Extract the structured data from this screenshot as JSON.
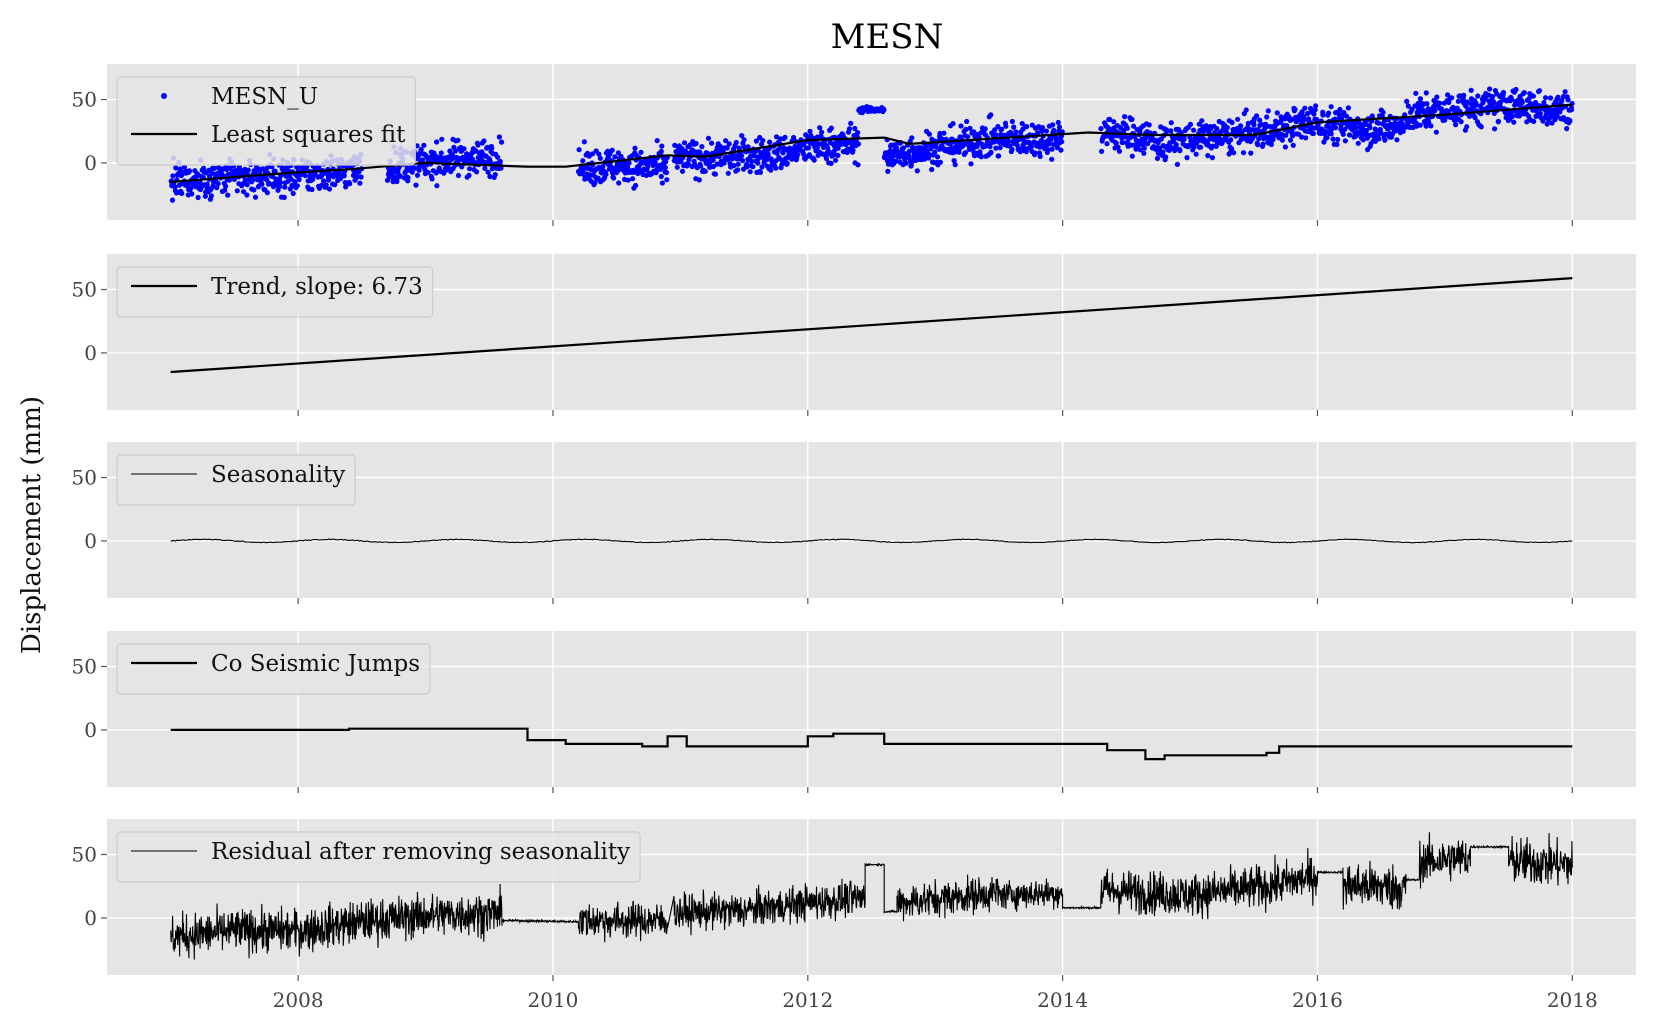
{
  "chart_data": {
    "type": "line",
    "title": "MESN",
    "ylabel": "Displacement (mm)",
    "xlabel": "",
    "xlim": [
      2006.5,
      2018.5
    ],
    "ylim": [
      -45,
      78
    ],
    "x_ticks": [
      2008,
      2010,
      2012,
      2014,
      2016,
      2018
    ],
    "x_tick_labels": [
      "2008",
      "2010",
      "2012",
      "2014",
      "2016",
      "2018"
    ],
    "y_ticks": [
      0,
      50
    ],
    "y_tick_labels": [
      "0",
      "50"
    ],
    "grid": true,
    "background": "#e5e5e5",
    "panels": [
      {
        "key": "observed",
        "legend_location": "upper-left",
        "series": [
          {
            "name": "MESN_U",
            "style": "points",
            "color": "#0000ff",
            "description": "Daily up-component GPS displacement, approx. 2007.0 to 2018.0",
            "segments": [
              {
                "x": [
                  2007.0,
                  2007.5,
                  2008.0,
                  2008.5
                ],
                "y": [
                  -15,
                  -12,
                  -10,
                  -5
                ]
              },
              {
                "x": [
                  2008.7,
                  2009.0,
                  2009.3,
                  2009.6
                ],
                "y": [
                  -3,
                  0,
                  4,
                  5
                ]
              },
              {
                "x": [
                  2010.2,
                  2010.5,
                  2010.9
                ],
                "y": [
                  -4,
                  -2,
                  -4
                ]
              },
              {
                "x": [
                  2010.95,
                  2011.3,
                  2011.7,
                  2012.0,
                  2012.4
                ],
                "y": [
                  3,
                  5,
                  6,
                  12,
                  16
                ]
              },
              {
                "x": [
                  2012.4,
                  2012.6
                ],
                "y": [
                  42,
                  42
                ]
              },
              {
                "x": [
                  2012.6,
                  2013.0,
                  2013.4,
                  2014.0
                ],
                "y": [
                  5,
                  12,
                  18,
                  20
                ]
              },
              {
                "x": [
                  2014.3,
                  2014.7
                ],
                "y": [
                  24,
                  20
                ]
              },
              {
                "x": [
                  2014.7,
                  2015.2,
                  2015.6,
                  2016.0
                ],
                "y": [
                  15,
                  20,
                  25,
                  33
                ]
              },
              {
                "x": [
                  2016.0,
                  2016.4,
                  2016.7
                ],
                "y": [
                  30,
                  28,
                  28
                ]
              },
              {
                "x": [
                  2016.7,
                  2017.1,
                  2017.5,
                  2018.0
                ],
                "y": [
                  38,
                  42,
                  45,
                  42
                ]
              }
            ]
          },
          {
            "name": "Least squares fit",
            "style": "line",
            "color": "#000000",
            "x": [
              2007.0,
              2007.9,
              2008.4,
              2009.0,
              2009.8,
              2010.1,
              2010.9,
              2011.2,
              2012.0,
              2012.6,
              2012.8,
              2014.2,
              2014.7,
              2015.5,
              2016.0,
              2017.0,
              2018.0
            ],
            "y": [
              -15,
              -8,
              -5,
              0,
              -3,
              -3,
              6,
              5,
              18,
              20,
              15,
              24,
              22,
              22,
              32,
              38,
              46
            ]
          }
        ]
      },
      {
        "key": "trend",
        "legend_location": "upper-left",
        "series": [
          {
            "name": "Trend, slope: 6.73",
            "style": "line",
            "color": "#000000",
            "x": [
              2007.0,
              2018.0
            ],
            "y": [
              -15,
              59
            ]
          }
        ]
      },
      {
        "key": "seasonality",
        "legend_location": "upper-left",
        "series": [
          {
            "name": "Seasonality",
            "style": "thin-line",
            "color": "#000000",
            "x_start": 2007.0,
            "x_end": 2018.0,
            "amplitude": 1.2,
            "period_years": 1
          }
        ]
      },
      {
        "key": "jumps",
        "legend_location": "upper-left",
        "series": [
          {
            "name": "Co Seismic Jumps",
            "style": "step",
            "color": "#000000",
            "x": [
              2007.0,
              2008.4,
              2009.0,
              2009.8,
              2010.1,
              2010.7,
              2010.9,
              2011.05,
              2012.0,
              2012.2,
              2012.6,
              2014.35,
              2014.65,
              2014.8,
              2015.6,
              2015.7,
              2016.0,
              2018.0
            ],
            "y": [
              0,
              1,
              1,
              -8,
              -11,
              -13,
              -5,
              -13,
              -5,
              -3,
              -11,
              -16,
              -23,
              -20,
              -18,
              -13,
              -13,
              -13
            ]
          }
        ]
      },
      {
        "key": "residual",
        "legend_location": "upper-left",
        "series": [
          {
            "name": "Residual after removing seasonality",
            "style": "thin-line",
            "color": "#000000",
            "segments": [
              {
                "x": [
                  2007.0,
                  2007.5,
                  2008.0,
                  2008.5,
                  2009.0,
                  2009.6
                ],
                "y": [
                  -15,
                  -10,
                  -10,
                  -3,
                  2,
                  4
                ],
                "noise": 12
              },
              {
                "x": [
                  2009.6,
                  2010.2
                ],
                "y": [
                  -2,
                  -3
                ],
                "noise": 0.6
              },
              {
                "x": [
                  2010.2,
                  2010.9
                ],
                "y": [
                  -2,
                  -2
                ],
                "noise": 10
              },
              {
                "x": [
                  2010.95,
                  2011.5,
                  2012.0,
                  2012.45
                ],
                "y": [
                  4,
                  6,
                  12,
                  16
                ],
                "noise": 10
              },
              {
                "x": [
                  2012.45,
                  2012.6
                ],
                "y": [
                  42,
                  42
                ],
                "noise": 0.5
              },
              {
                "x": [
                  2012.6,
                  2012.7
                ],
                "y": [
                  5,
                  5
                ],
                "noise": 0.5
              },
              {
                "x": [
                  2012.7,
                  2013.5
                ],
                "y": [
                  12,
                  20
                ],
                "noise": 10
              },
              {
                "x": [
                  2013.5,
                  2014.0
                ],
                "y": [
                  18,
                  20
                ],
                "noise": 8
              },
              {
                "x": [
                  2014.0,
                  2014.3
                ],
                "y": [
                  8,
                  8
                ],
                "noise": 0.5
              },
              {
                "x": [
                  2014.3,
                  2015.0,
                  2015.6,
                  2016.0
                ],
                "y": [
                  22,
                  18,
                  25,
                  33
                ],
                "noise": 12
              },
              {
                "x": [
                  2016.0,
                  2016.2
                ],
                "y": [
                  36,
                  36
                ],
                "noise": 0.5
              },
              {
                "x": [
                  2016.2,
                  2016.7
                ],
                "y": [
                  26,
                  24
                ],
                "noise": 13
              },
              {
                "x": [
                  2016.7,
                  2016.8
                ],
                "y": [
                  30,
                  30
                ],
                "noise": 0.5
              },
              {
                "x": [
                  2016.8,
                  2017.2
                ],
                "y": [
                  44,
                  48
                ],
                "noise": 12
              },
              {
                "x": [
                  2017.2,
                  2017.5
                ],
                "y": [
                  56,
                  56
                ],
                "noise": 0.5
              },
              {
                "x": [
                  2017.5,
                  2018.0
                ],
                "y": [
                  45,
                  42
                ],
                "noise": 13
              }
            ]
          }
        ]
      }
    ]
  }
}
